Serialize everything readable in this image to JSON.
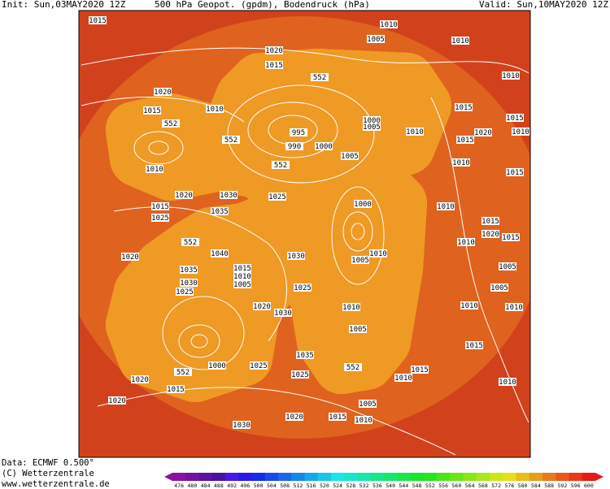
{
  "header": {
    "init": "Init: Sun,03MAY2020 12Z",
    "title": "500 hPa Geopot. (gpdm), Bodendruck (hPa)",
    "valid": "Valid: Sun,10MAY2020 12Z"
  },
  "footer": {
    "data": "Data: ECMWF  0.500°",
    "copyright": "(C) Wetterzentrale",
    "url": "www.wetterzentrale.de"
  },
  "colorbar": {
    "ticks": [
      476,
      480,
      484,
      488,
      492,
      496,
      500,
      504,
      508,
      512,
      516,
      520,
      524,
      528,
      532,
      536,
      540,
      544,
      548,
      552,
      556,
      560,
      564,
      568,
      572,
      576,
      580,
      584,
      588,
      592,
      596,
      600
    ]
  },
  "map": {
    "isobar_labels": [
      1015,
      1010,
      1005,
      1010,
      1020,
      1015,
      1010,
      552,
      1020,
      1015,
      1010,
      1015,
      1015,
      552,
      995,
      1000,
      1005,
      1010,
      1020,
      1010,
      552,
      990,
      1000,
      1015,
      1010,
      1005,
      552,
      1010,
      1015,
      1020,
      1030,
      1025,
      1000,
      1010,
      1015,
      1035,
      1025,
      1015,
      1010,
      1020,
      1015,
      552,
      1040,
      1030,
      1005,
      1010,
      1020,
      1015,
      1010,
      1005,
      1035,
      1030,
      1025,
      1025,
      1005,
      1005,
      1020,
      1030,
      1010,
      1010,
      1010,
      1005,
      1015,
      1035,
      1000,
      1025,
      552,
      552,
      1025,
      1015,
      1010,
      1020,
      1015,
      1010,
      1020,
      1005,
      1020,
      1015,
      1010,
      1030
    ]
  }
}
